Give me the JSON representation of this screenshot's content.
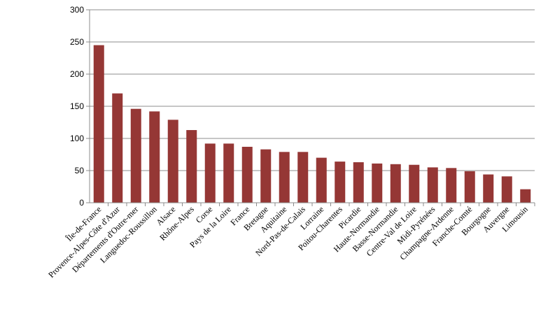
{
  "chart_data": {
    "type": "bar",
    "categories": [
      "Île-de-France",
      "Provence-Alpes-Côte d'Azur",
      "Départements d'Outre-mer",
      "Languedoc-Roussillon",
      "Alsace",
      "Rhône-Alpes",
      "Corse",
      "Pays de la Loire",
      "France",
      "Bretagne",
      "Aquitaine",
      "Nord-Pas-de-Calais",
      "Lorraine",
      "Poitou-Charentes",
      "Picardie",
      "Haute-Normandie",
      "Basse-Normandie",
      "Centre-Val de Loire",
      "Midi-Pyrénées",
      "Champagne-Ardenne",
      "Franche-Comté",
      "Bourgogne",
      "Auvergne",
      "Limousin"
    ],
    "values": [
      245,
      170,
      146,
      142,
      129,
      113,
      92,
      92,
      87,
      83,
      79,
      79,
      70,
      64,
      63,
      61,
      60,
      59,
      55,
      54,
      49,
      44,
      41,
      21
    ],
    "color": "#953735",
    "ylim": [
      0,
      300
    ],
    "yticks": [
      0,
      50,
      100,
      150,
      200,
      250,
      300
    ],
    "grid": true
  }
}
